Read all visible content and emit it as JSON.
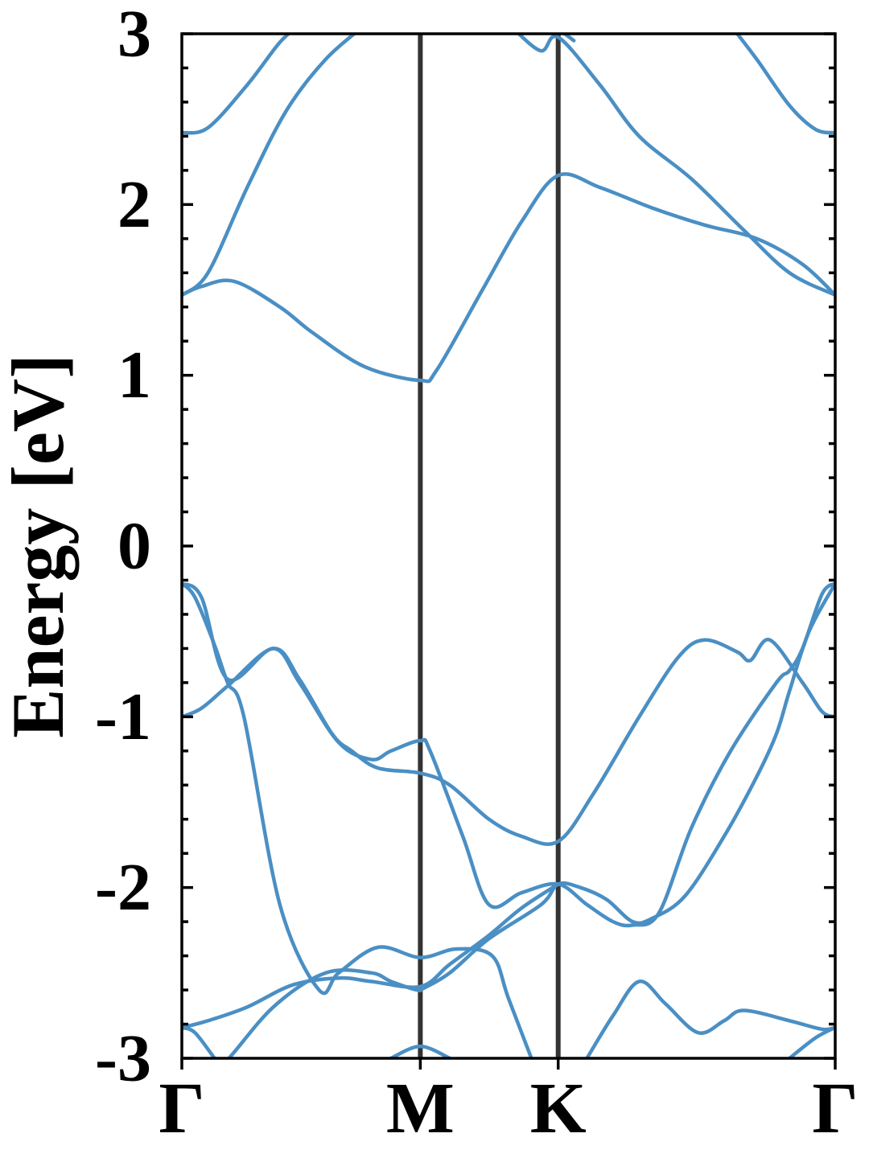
{
  "chart_data": {
    "type": "line",
    "title": "",
    "xlabel": "",
    "ylabel": "Energy [eV]",
    "ylim": [
      -3,
      3
    ],
    "yticks": [
      -3,
      -2,
      -1,
      0,
      1,
      2,
      3
    ],
    "y_minor_step": 0.2,
    "xlim": [
      0,
      1
    ],
    "kpoints": [
      {
        "label": "Γ",
        "x": 0.0
      },
      {
        "label": "M",
        "x": 0.365
      },
      {
        "label": "K",
        "x": 0.576
      },
      {
        "label": "Γ",
        "x": 1.0
      }
    ],
    "line_color": "#4a8fc4",
    "kline_color": "#333333",
    "series": [
      {
        "values": [
          [
            0,
            -3.22
          ],
          [
            0.06,
            -3.05
          ],
          [
            0.14,
            -2.7
          ],
          [
            0.22,
            -2.5
          ],
          [
            0.29,
            -2.5
          ],
          [
            0.32,
            -2.55
          ],
          [
            0.36,
            -2.6
          ],
          [
            0.37,
            -2.59
          ],
          [
            0.41,
            -2.5
          ],
          [
            0.47,
            -2.3
          ],
          [
            0.55,
            -2.1
          ],
          [
            0.576,
            -1.98
          ],
          [
            0.61,
            -2.0
          ],
          [
            0.65,
            -2.07
          ],
          [
            0.69,
            -2.2
          ],
          [
            0.72,
            -2.18
          ],
          [
            0.77,
            -2.05
          ],
          [
            0.83,
            -1.7
          ],
          [
            0.88,
            -1.35
          ],
          [
            0.91,
            -1.1
          ],
          [
            0.93,
            -0.85
          ],
          [
            0.96,
            -0.5
          ],
          [
            1.0,
            -0.22
          ]
        ]
      },
      {
        "values": [
          [
            0,
            -0.22
          ],
          [
            0.03,
            -0.3
          ],
          [
            0.07,
            -0.78
          ],
          [
            0.14,
            -0.6
          ],
          [
            0.18,
            -0.8
          ],
          [
            0.24,
            -1.15
          ],
          [
            0.29,
            -1.25
          ],
          [
            0.32,
            -1.2
          ],
          [
            0.365,
            -1.14
          ],
          [
            0.38,
            -1.2
          ],
          [
            0.43,
            -1.7
          ],
          [
            0.47,
            -2.1
          ],
          [
            0.52,
            -2.03
          ],
          [
            0.576,
            -1.98
          ],
          [
            0.62,
            -2.1
          ],
          [
            0.66,
            -2.2
          ],
          [
            0.69,
            -2.22
          ],
          [
            0.73,
            -2.15
          ],
          [
            0.78,
            -1.65
          ],
          [
            0.84,
            -1.2
          ],
          [
            0.91,
            -0.8
          ],
          [
            0.93,
            -0.73
          ],
          [
            0.95,
            -0.6
          ],
          [
            0.98,
            -0.28
          ],
          [
            1.0,
            -0.22
          ]
        ]
      },
      {
        "values": [
          [
            0,
            -0.22
          ],
          [
            0.02,
            -0.3
          ],
          [
            0.05,
            -0.58
          ],
          [
            0.07,
            -0.8
          ],
          [
            0.095,
            -1.0
          ],
          [
            0.15,
            -2.1
          ],
          [
            0.21,
            -2.6
          ],
          [
            0.24,
            -2.5
          ],
          [
            0.3,
            -2.35
          ],
          [
            0.365,
            -2.41
          ],
          [
            0.42,
            -2.36
          ],
          [
            0.475,
            -2.4
          ],
          [
            0.5,
            -2.65
          ],
          [
            0.54,
            -3.05
          ]
        ]
      },
      {
        "values": [
          [
            0,
            -1.0
          ],
          [
            0.03,
            -0.95
          ],
          [
            0.07,
            -0.82
          ],
          [
            0.14,
            -0.6
          ],
          [
            0.18,
            -0.78
          ],
          [
            0.23,
            -1.1
          ],
          [
            0.26,
            -1.2
          ],
          [
            0.3,
            -1.3
          ],
          [
            0.365,
            -1.33
          ],
          [
            0.41,
            -1.4
          ],
          [
            0.47,
            -1.6
          ],
          [
            0.52,
            -1.7
          ],
          [
            0.576,
            -1.73
          ],
          [
            0.63,
            -1.45
          ],
          [
            0.7,
            -1.0
          ],
          [
            0.76,
            -0.65
          ],
          [
            0.8,
            -0.55
          ],
          [
            0.85,
            -0.62
          ],
          [
            0.87,
            -0.67
          ],
          [
            0.9,
            -0.55
          ],
          [
            0.95,
            -0.8
          ],
          [
            0.98,
            -0.97
          ],
          [
            1.0,
            -1.0
          ]
        ]
      },
      {
        "values": [
          [
            0,
            -2.82
          ],
          [
            0.04,
            -2.78
          ],
          [
            0.1,
            -2.7
          ],
          [
            0.17,
            -2.57
          ],
          [
            0.24,
            -2.53
          ],
          [
            0.29,
            -2.55
          ],
          [
            0.365,
            -2.58
          ],
          [
            0.41,
            -2.45
          ],
          [
            0.47,
            -2.28
          ],
          [
            0.52,
            -2.12
          ],
          [
            0.576,
            -1.98
          ]
        ]
      },
      {
        "values": [
          [
            0,
            -2.82
          ],
          [
            0.02,
            -2.85
          ],
          [
            0.05,
            -3.0
          ]
        ]
      },
      {
        "values": [
          [
            0.32,
            -3.0
          ],
          [
            0.365,
            -2.93
          ],
          [
            0.41,
            -3.0
          ]
        ]
      },
      {
        "values": [
          [
            0.62,
            -3.0
          ],
          [
            0.66,
            -2.75
          ],
          [
            0.7,
            -2.55
          ],
          [
            0.74,
            -2.68
          ],
          [
            0.79,
            -2.85
          ],
          [
            0.83,
            -2.78
          ],
          [
            0.86,
            -2.72
          ],
          [
            0.93,
            -2.78
          ],
          [
            0.98,
            -2.83
          ],
          [
            1.0,
            -2.82
          ]
        ]
      },
      {
        "values": [
          [
            0.93,
            -3.0
          ],
          [
            0.97,
            -2.88
          ],
          [
            1.0,
            -2.82
          ]
        ]
      },
      {
        "values": [
          [
            0,
            1.47
          ],
          [
            0.03,
            1.52
          ],
          [
            0.08,
            1.55
          ],
          [
            0.15,
            1.4
          ],
          [
            0.2,
            1.25
          ],
          [
            0.28,
            1.05
          ],
          [
            0.365,
            0.97
          ],
          [
            0.39,
            1.03
          ],
          [
            0.46,
            1.5
          ],
          [
            0.52,
            1.9
          ],
          [
            0.576,
            2.17
          ],
          [
            0.64,
            2.1
          ],
          [
            0.72,
            1.98
          ],
          [
            0.8,
            1.88
          ],
          [
            0.88,
            1.8
          ],
          [
            0.95,
            1.65
          ],
          [
            1.0,
            1.47
          ]
        ]
      },
      {
        "values": [
          [
            0,
            1.47
          ],
          [
            0.04,
            1.6
          ],
          [
            0.1,
            2.1
          ],
          [
            0.16,
            2.55
          ],
          [
            0.22,
            2.85
          ],
          [
            0.28,
            3.05
          ]
        ]
      },
      {
        "values": [
          [
            0,
            2.42
          ],
          [
            0.04,
            2.45
          ],
          [
            0.1,
            2.7
          ],
          [
            0.15,
            2.95
          ],
          [
            0.18,
            3.05
          ]
        ]
      },
      {
        "values": [
          [
            0.51,
            3.02
          ],
          [
            0.55,
            2.9
          ],
          [
            0.576,
            2.98
          ],
          [
            0.64,
            2.7
          ],
          [
            0.7,
            2.4
          ],
          [
            0.78,
            2.15
          ],
          [
            0.86,
            1.85
          ],
          [
            0.93,
            1.6
          ],
          [
            1.0,
            1.47
          ]
        ]
      },
      {
        "values": [
          [
            0.55,
            3.02
          ],
          [
            0.576,
            3.02
          ],
          [
            0.6,
            2.96
          ]
        ]
      },
      {
        "values": [
          [
            0.84,
            3.05
          ],
          [
            0.88,
            2.85
          ],
          [
            0.93,
            2.58
          ],
          [
            0.97,
            2.44
          ],
          [
            1.0,
            2.42
          ]
        ]
      }
    ]
  }
}
